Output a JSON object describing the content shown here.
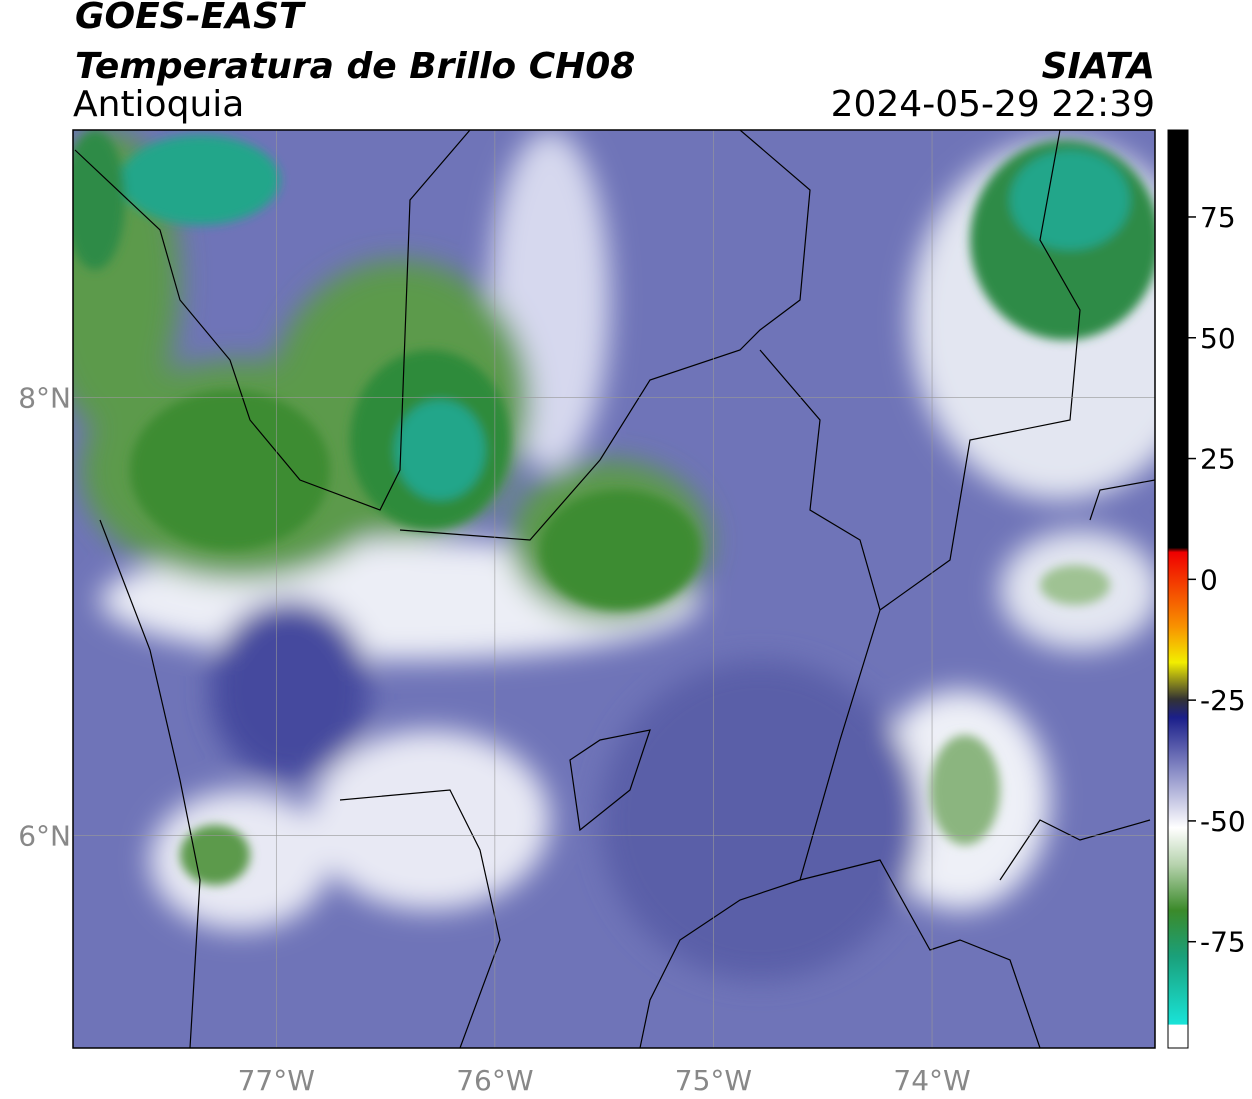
{
  "header": {
    "satellite": "GOES-EAST",
    "product": "Temperatura de Brillo CH08",
    "region": "Antioquia",
    "source": "SIATA",
    "datetime": "2024-05-29 22:39"
  },
  "map": {
    "lonlim": [
      -77.93,
      -72.98
    ],
    "latlim": [
      5.03,
      9.22
    ],
    "lon_ticks": [
      {
        "value": -77,
        "label": "77°W"
      },
      {
        "value": -76,
        "label": "76°W"
      },
      {
        "value": -75,
        "label": "75°W"
      },
      {
        "value": -74,
        "label": "74°W"
      }
    ],
    "lat_ticks": [
      {
        "value": 8,
        "label": "8°N"
      },
      {
        "value": 6,
        "label": "6°N"
      }
    ]
  },
  "colorbar": {
    "lim": [
      -97,
      93
    ],
    "ticks": [
      75,
      50,
      25,
      0,
      -25,
      -50,
      -75
    ]
  }
}
